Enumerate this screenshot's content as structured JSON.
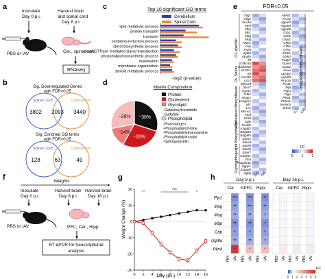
{
  "panels": {
    "a": {
      "letter": "a",
      "step1": "Inoculate",
      "step1b": "Day 0 p.i.",
      "step2": "Harvest brain",
      "step2b": "and spinal cord",
      "step2c": "Day 8 p.i.",
      "treatment": "PBS or IAV",
      "tissue": "Cer., spinal cord",
      "assay": "RNAseq"
    },
    "b": {
      "letter": "b",
      "venn1_title": "Sig. Downregulated Genes",
      "venn1_subtitle": "with FDR<0.05",
      "venn1_left_label": "Spinal Cord",
      "venn1_right_label": "Cerebellum",
      "venn1_left": "3802",
      "venn1_overlap": "2093",
      "venn1_right": "3440",
      "venn2_title": "Sig. Enriched GO terms",
      "venn2_subtitle": "with FDR<0.05",
      "venn2_left_label": "Spinal Cord",
      "venn2_right_label": "Cerebellum",
      "venn2_left": "128",
      "venn2_overlap": "63",
      "venn2_right": "49"
    },
    "c": {
      "letter": "c",
      "xlabel": "-log2 (p-value)"
    },
    "d": {
      "letter": "d",
      "title": "Myelin Composition"
    },
    "e": {
      "letter": "e",
      "header": "FDR<0.05",
      "section_left": [
        "OL-specific",
        "OL Stress",
        "Cholesterol Biosynthesis",
        "Glycosphingolipid Biosynthesis"
      ],
      "section_right": "Phospholipid Biosynthesis",
      "col_labels": [
        "S.C.",
        "Cer."
      ],
      "legend_title": "FC",
      "legend_ticks": [
        "0",
        "1",
        "2"
      ]
    },
    "f": {
      "letter": "f",
      "top": "Weights",
      "step1": "Inoculate",
      "step1b": "Day 0 p.i.",
      "step2": "Harvest brain",
      "step2b": "Day 8 p.i.",
      "step3": "Harvest brain",
      "step3b": "Day 16 p.i.",
      "treatment": "PBS or IAV",
      "tissue": "PFC, Cer., Hipp.",
      "assay1": "RT-qPCR for transcriptional",
      "assay2": "analysis"
    },
    "g": {
      "letter": "g"
    },
    "h": {
      "letter": "h",
      "day8": "Day 8 p.i.",
      "day16": "Day 16 p.i.",
      "regions": [
        "Cer.",
        "mPFC",
        "Hipp."
      ],
      "col_labels": [
        "PBS",
        "IAV",
        "PBS",
        "IAV",
        "PBS",
        "IAV",
        "PBS",
        "IAV",
        "PBS",
        "IAV",
        "PBS",
        "IAV"
      ],
      "legend_title": "FC",
      "legend_ticks": [
        "0",
        "1",
        "2",
        "3",
        "4",
        "5",
        "6"
      ]
    }
  },
  "chart_data": [
    {
      "type": "bar",
      "title": "Top 10 significant GO terms",
      "categories": [
        "lipid metabolic process",
        "protein transport",
        "transport",
        "oxidation-reduction process",
        "sterol biosynthetic process",
        "small GTPase mediated signal transduction",
        "phospholipid biosynthetic process",
        "myelination",
        "membrane organization",
        "steroid metabolic process"
      ],
      "series": [
        {
          "name": "Cerebellum",
          "color": "#2b3fb3",
          "values": [
            20,
            13,
            12,
            8,
            9,
            7,
            8,
            6,
            5,
            6
          ]
        },
        {
          "name": "Spinal Cord",
          "color": "#e98a3a",
          "values": [
            22,
            19,
            25,
            11,
            11,
            10,
            9,
            7,
            6,
            7
          ]
        }
      ],
      "xlabel": "-log2 (p-value)"
    },
    {
      "type": "pie",
      "title": "Myelin Composition",
      "slices": [
        {
          "label": "~30%",
          "value": 30,
          "color": "#111111"
        },
        {
          "label": "~28%",
          "value": 28,
          "color": "#cc1a1a"
        },
        {
          "label": "~14%",
          "value": 14,
          "color": "#f07a7a"
        },
        {
          "label": "~28%",
          "value": 28,
          "color": "#f6bcbc"
        }
      ],
      "legend": [
        {
          "label": "Protein",
          "color": "#111111"
        },
        {
          "label": "Cholesterol",
          "color": "#cc1a1a"
        },
        {
          "label": "Glycolipid",
          "color": "#f07a7a"
        },
        {
          "label": "-Galactosylceramide",
          "color": ""
        },
        {
          "label": "-Sulfatide",
          "color": ""
        },
        {
          "label": "Phospholipid",
          "color": "#f6bcbc"
        },
        {
          "label": "-Plasmalogen",
          "color": ""
        },
        {
          "label": "-Phosphatidylcholine",
          "color": ""
        },
        {
          "label": "-Phosphatidylethanolamine",
          "color": ""
        },
        {
          "label": "-Phosphatidylinositol",
          "color": ""
        },
        {
          "label": "-Sphingomyelin",
          "color": ""
        }
      ]
    },
    {
      "type": "line",
      "xlabel": "Day (p.i.)",
      "ylabel": "Weight Change (%)",
      "x": [
        0,
        2,
        4,
        6,
        8,
        10,
        12,
        14,
        16
      ],
      "series": [
        {
          "name": "PBS",
          "color": "#111111",
          "values": [
            0,
            1,
            2,
            3,
            4,
            5,
            6,
            7,
            7
          ]
        },
        {
          "name": "IAV",
          "color": "#d42020",
          "values": [
            0,
            -1,
            -7,
            -14,
            -19,
            -23,
            -24,
            -18,
            -12
          ]
        }
      ],
      "xticks": [
        "0",
        "2",
        "4",
        "6",
        "8",
        "10",
        "12",
        "14",
        "16"
      ],
      "yticks": [
        "-30",
        "-20",
        "-10",
        "0",
        "10",
        "20"
      ],
      "ylim": [
        -30,
        20
      ],
      "annotations": [
        "**",
        "***",
        "*"
      ]
    },
    {
      "type": "heatmap",
      "rows": [
        "Plp1",
        "Mag",
        "Mog",
        "Mbp",
        "Cnp",
        "Ugt8a",
        "Plin4"
      ],
      "stars": [
        [
          "",
          "***",
          "",
          "***",
          "",
          "**",
          "",
          "",
          "",
          "",
          "",
          ""
        ],
        [
          "",
          "**",
          "",
          "***",
          "",
          "**",
          "",
          "",
          "",
          "",
          "",
          ""
        ],
        [
          "",
          "**",
          "",
          "**",
          "",
          "*",
          "",
          "",
          "",
          "",
          "",
          ""
        ],
        [
          "",
          "**",
          "",
          "**",
          "",
          "*",
          "",
          "",
          "",
          "",
          "",
          ""
        ],
        [
          "",
          "*",
          "",
          "*",
          "",
          "*",
          "",
          "",
          "",
          "",
          "",
          ""
        ],
        [
          "",
          "**",
          "",
          "**",
          "",
          "*",
          "",
          "",
          "",
          "",
          "",
          ""
        ],
        [
          "",
          "*",
          "",
          "*",
          "",
          "*",
          "",
          "",
          "",
          "",
          "",
          ""
        ]
      ]
    }
  ],
  "heatmap_e": {
    "left_genes": [
      "Olig1",
      "Olig2",
      "Sox10",
      "Myrf",
      "Mbp",
      "Plp1",
      "Mag",
      "Mog",
      "Nfasc",
      "Cnp",
      "Fa2h",
      "Ugt8a",
      "Opalin",
      "Trf",
      "Cdkn1a",
      "Gadd45b",
      "Il12rb1",
      "Il6",
      "Cxcl10",
      "Lcn2",
      "Dhcr24",
      "Dhcr7",
      "Cyp51",
      "Fdft1",
      "Hmgcr",
      "Hmgcs1",
      "Idi1",
      "Lss",
      "Msmo1",
      "Mvd",
      "Sc5d",
      "Sqle",
      "Srebf2",
      "A3galt2",
      "B3galt4",
      "B4galt6",
      "Elovl1",
      "Elovl4",
      "Elovl5",
      "Elovl6",
      "Elovl7",
      "Gal3st1",
      "Gba",
      "Ppapdc1b",
      "Sgpp1",
      "St3gal5",
      "Ugcg"
    ],
    "right_genes": [
      "Abhd1",
      "Acss2",
      "Agpat3",
      "Agpat4",
      "Agpat5",
      "Cds1",
      "Cds2",
      "Cept1",
      "Chka",
      "Chkb",
      "Crls1",
      "Etnk1",
      "Etnk2",
      "Fabp7",
      "Gpam",
      "Gpat2",
      "Hexa",
      "Lpcat1",
      "Lpcat3",
      "Pcyt1a",
      "Pcyt2",
      "Pigl",
      "Pigm",
      "Pigo",
      "Plcd1",
      "Ptdss1",
      "Serinc5",
      "Sms2"
    ]
  },
  "colors": {
    "fc_low": "#3a56c8",
    "fc_mid": "#ffffff",
    "fc_high": "#d42020"
  }
}
